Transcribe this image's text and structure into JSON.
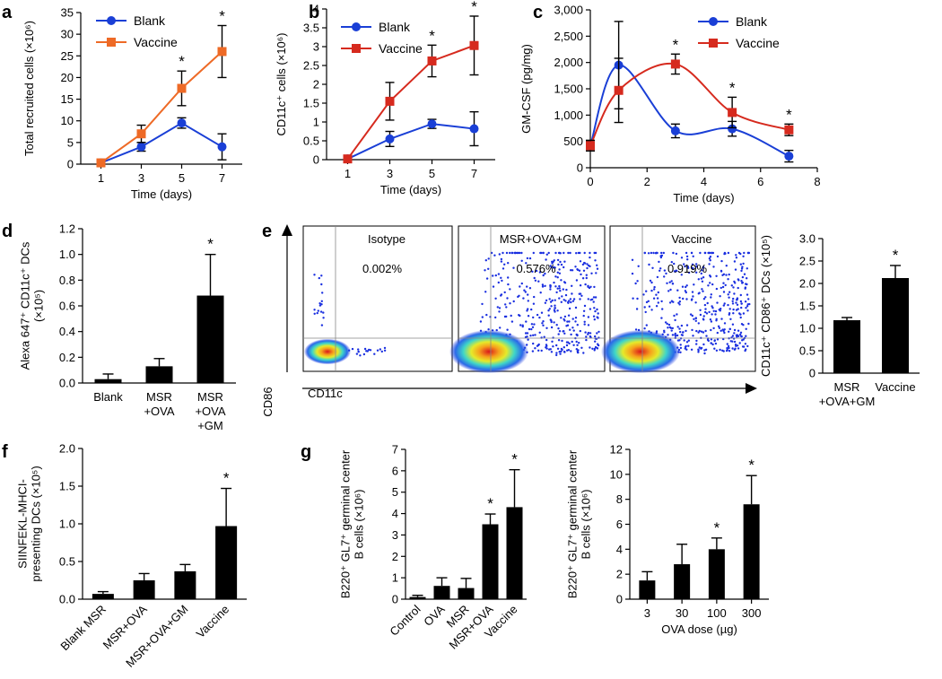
{
  "colors": {
    "blank": "#1a3fd6",
    "vaccine_a": "#ee6a26",
    "vaccine": "#d62a1e",
    "bar": "#000000",
    "dot": "#1a2fe0"
  },
  "panel_labels": [
    "a",
    "b",
    "c",
    "d",
    "e",
    "f",
    "g"
  ],
  "chart_data": [
    {
      "id": "a",
      "type": "line",
      "xlabel": "Time (days)",
      "ylabel": "Total recruited cells (×10⁶)",
      "x": [
        1,
        3,
        5,
        7
      ],
      "xticks": [
        "1",
        "3",
        "5",
        "7"
      ],
      "ylim": [
        0,
        35
      ],
      "yticks": [
        "0",
        "5",
        "10",
        "15",
        "20",
        "25",
        "30",
        "35"
      ],
      "series": [
        {
          "name": "Blank",
          "values": [
            0.3,
            4,
            9.5,
            4
          ],
          "err": [
            0.3,
            1,
            1.2,
            3
          ],
          "marker": "circle"
        },
        {
          "name": "Vaccine",
          "values": [
            0.3,
            7,
            17.5,
            26
          ],
          "err": [
            0.3,
            2,
            4,
            6
          ],
          "marker": "square"
        }
      ],
      "significance": [
        {
          "x": 5,
          "label": "*"
        },
        {
          "x": 7,
          "label": "*"
        }
      ]
    },
    {
      "id": "b",
      "type": "line",
      "xlabel": "Time (days)",
      "ylabel": "CD11c⁺ cells (×10⁶)",
      "x": [
        1,
        3,
        5,
        7
      ],
      "xticks": [
        "1",
        "3",
        "5",
        "7"
      ],
      "ylim": [
        0,
        4
      ],
      "yticks": [
        "0",
        "0.5",
        "1",
        "1.5",
        "2",
        "2.5",
        "3",
        "3.5",
        "4"
      ],
      "series": [
        {
          "name": "Blank",
          "values": [
            0.02,
            0.55,
            0.95,
            0.82
          ],
          "err": [
            0.02,
            0.2,
            0.12,
            0.45
          ],
          "marker": "circle"
        },
        {
          "name": "Vaccine",
          "values": [
            0.02,
            1.55,
            2.62,
            3.03
          ],
          "err": [
            0.02,
            0.5,
            0.42,
            0.78
          ],
          "marker": "square"
        }
      ],
      "significance": [
        {
          "x": 5,
          "label": "*"
        },
        {
          "x": 7,
          "label": "*"
        }
      ]
    },
    {
      "id": "c",
      "type": "line",
      "xlabel": "Time (days)",
      "ylabel": "GM-CSF (pg/mg)",
      "x": [
        0,
        1,
        3,
        5,
        7
      ],
      "xticks": [
        "0",
        "2",
        "4",
        "6",
        "8"
      ],
      "xlim": [
        0,
        8
      ],
      "ylim": [
        0,
        3000
      ],
      "yticks": [
        "0",
        "500",
        "1,000",
        "1,500",
        "2,000",
        "2,500",
        "3,000"
      ],
      "series": [
        {
          "name": "Blank",
          "values": [
            420,
            1950,
            700,
            740,
            220
          ],
          "err": [
            100,
            830,
            130,
            140,
            110
          ],
          "marker": "circle"
        },
        {
          "name": "Vaccine",
          "values": [
            420,
            1470,
            1970,
            1050,
            720
          ],
          "err": [
            100,
            610,
            190,
            290,
            110
          ],
          "marker": "square"
        }
      ],
      "significance": [
        {
          "x": 3,
          "label": "*"
        },
        {
          "x": 5,
          "label": "*"
        },
        {
          "x": 7,
          "label": "*"
        }
      ]
    },
    {
      "id": "d",
      "type": "bar",
      "ylabel_lines": [
        "Alexa 647⁺ CD11c⁺ DCs",
        "(×10⁵)"
      ],
      "categories": [
        [
          "Blank"
        ],
        [
          "MSR",
          "+OVA"
        ],
        [
          "MSR",
          "+OVA",
          "+GM"
        ]
      ],
      "values": [
        0.03,
        0.13,
        0.68
      ],
      "err": [
        0.04,
        0.06,
        0.32
      ],
      "ylim": [
        0,
        1.2
      ],
      "yticks": [
        "0.0",
        "0.2",
        "0.4",
        "0.6",
        "0.8",
        "1.0",
        "1.2"
      ],
      "significance": [
        {
          "index": 2,
          "label": "*"
        }
      ]
    },
    {
      "id": "e_flow",
      "type": "scatter",
      "xlabel": "CD11c",
      "ylabel": "CD86",
      "plots": [
        {
          "title": "Isotype",
          "percent": "0.002%"
        },
        {
          "title": "MSR+OVA+GM",
          "percent": "0.576%"
        },
        {
          "title": "Vaccine",
          "percent": "0.919%"
        }
      ]
    },
    {
      "id": "e_bar",
      "type": "bar",
      "ylabel": "CD11c⁺ CD86⁺ DCs  (×10⁵)",
      "categories": [
        [
          "MSR",
          "+OVA+GM"
        ],
        [
          "Vaccine"
        ]
      ],
      "values": [
        1.18,
        2.12
      ],
      "err": [
        0.06,
        0.28
      ],
      "ylim": [
        0,
        3
      ],
      "yticks": [
        "0",
        "0.5",
        "1.0",
        "1.5",
        "2.0",
        "2.5",
        "3.0"
      ],
      "significance": [
        {
          "index": 1,
          "label": "*"
        }
      ]
    },
    {
      "id": "f",
      "type": "bar",
      "ylabel_lines": [
        "SIINFEKL-MHCI-",
        "presenting DCs (×10⁵)"
      ],
      "categories": [
        "Blank MSR",
        "MSR+OVA",
        "MSR+OVA+GM",
        "Vaccine"
      ],
      "values": [
        0.07,
        0.25,
        0.37,
        0.97
      ],
      "err": [
        0.03,
        0.09,
        0.09,
        0.5
      ],
      "ylim": [
        0,
        2
      ],
      "yticks": [
        "0.0",
        "0.5",
        "1.0",
        "1.5",
        "2.0"
      ],
      "significance": [
        {
          "index": 3,
          "label": "*"
        }
      ]
    },
    {
      "id": "g1",
      "type": "bar",
      "ylabel_lines": [
        "B220⁺ GL7⁺ germinal center",
        "B cells (×10⁶)"
      ],
      "categories": [
        "Control",
        "OVA",
        "MSR",
        "MSR+OVA",
        "Vaccine"
      ],
      "values": [
        0.1,
        0.62,
        0.52,
        3.5,
        4.3
      ],
      "err": [
        0.08,
        0.38,
        0.45,
        0.48,
        1.75
      ],
      "ylim": [
        0,
        7
      ],
      "yticks": [
        "0",
        "1",
        "2",
        "3",
        "4",
        "5",
        "6",
        "7"
      ],
      "significance": [
        {
          "index": 3,
          "label": "*"
        },
        {
          "index": 4,
          "label": "*"
        }
      ]
    },
    {
      "id": "g2",
      "type": "bar",
      "xlabel": "OVA dose (µg)",
      "ylabel_lines": [
        "B220⁺ GL7⁺ germinal center",
        "B cells (×10⁶)"
      ],
      "categories": [
        "3",
        "30",
        "100",
        "300"
      ],
      "values": [
        1.5,
        2.8,
        4.0,
        7.6
      ],
      "err": [
        0.7,
        1.6,
        0.9,
        2.3
      ],
      "ylim": [
        0,
        12
      ],
      "yticks": [
        "0",
        "2",
        "4",
        "6",
        "8",
        "10",
        "12"
      ],
      "significance": [
        {
          "index": 2,
          "label": "*"
        },
        {
          "index": 3,
          "label": "*"
        }
      ]
    }
  ]
}
